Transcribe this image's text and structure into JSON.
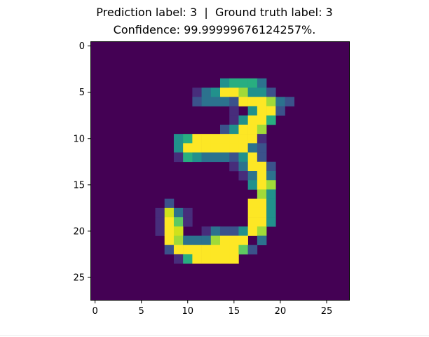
{
  "chart_data": {
    "type": "heatmap",
    "title_line1": "Prediction label: 3  |  Ground truth label: 3",
    "title_line2": "Confidence: 99.99999676124257%.",
    "xlabel": "",
    "ylabel": "",
    "xlim": [
      -0.5,
      27.5
    ],
    "ylim": [
      27.5,
      -0.5
    ],
    "xticks": [
      0,
      5,
      10,
      15,
      20,
      25
    ],
    "yticks": [
      0,
      5,
      10,
      15,
      20,
      25
    ],
    "colormap": "viridis",
    "colors": {
      "dark": "#440154",
      "blue": "#3b528b",
      "teal": "#21918c",
      "green": "#5ec962",
      "yellow": "#fde725"
    },
    "grid": false,
    "rows": [
      "............................",
      "............................",
      "............................",
      "............................",
      "..............45553.........",
      "...........134997442........",
      "...........23332999732......",
      "...............1.4992.......",
      "...............14995........",
      "..............24997.........",
      ".........4599999991.........",
      ".........4999999932.........",
      ".........1543332492.........",
      "...............13992........",
      "................1393........",
      ".................497........",
      "..................74........",
      "........2........994........",
      ".......1831......994........",
      ".......1961......994........",
      ".......198..1322497.........",
      "........973337999.3.........",
      "........2999999962..........",
      ".........1599999............",
      "............................",
      "............................",
      "............................",
      "............................"
    ]
  }
}
